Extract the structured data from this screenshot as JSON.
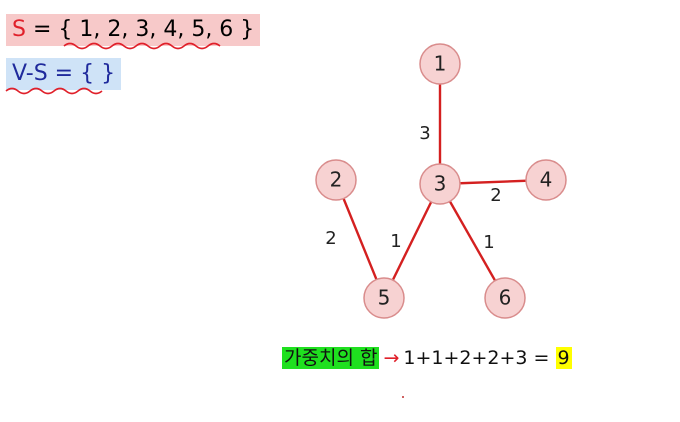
{
  "set_s": {
    "label": "S",
    "equals": " = { ",
    "elements": "1, 2, 3, 4, 5, 6",
    "close": " }"
  },
  "set_vs": {
    "label": "V-S",
    "rest": " = {  }"
  },
  "graph": {
    "nodes": [
      {
        "id": "1",
        "label": "1"
      },
      {
        "id": "2",
        "label": "2"
      },
      {
        "id": "3",
        "label": "3"
      },
      {
        "id": "4",
        "label": "4"
      },
      {
        "id": "5",
        "label": "5"
      },
      {
        "id": "6",
        "label": "6"
      }
    ],
    "edges": [
      {
        "from": "1",
        "to": "3",
        "weight": "3"
      },
      {
        "from": "3",
        "to": "4",
        "weight": "2"
      },
      {
        "from": "2",
        "to": "5",
        "weight": "2"
      },
      {
        "from": "3",
        "to": "5",
        "weight": "1"
      },
      {
        "from": "3",
        "to": "6",
        "weight": "1"
      }
    ],
    "edge_color": "#d42020",
    "node_fill": "#f7d2d2"
  },
  "sum": {
    "label": "가중치의 합",
    "arrow": "→",
    "expression": "1+1+2+2+3 = ",
    "result": "9"
  }
}
